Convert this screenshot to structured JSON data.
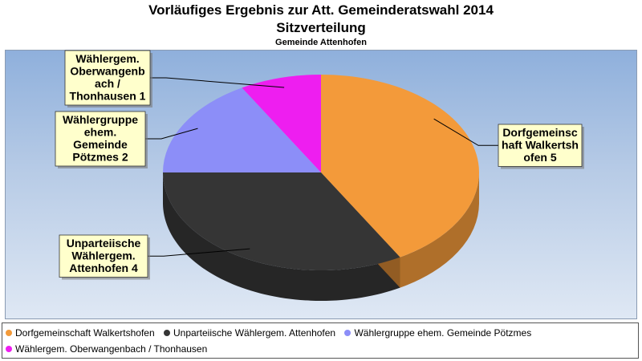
{
  "chart_data": {
    "type": "pie",
    "title": "Vorläufiges Ergebnis zur Att. Gemeinderatswahl 2014",
    "subtitle": "Sitzverteilung",
    "subtitle2": "Gemeinde Attenhofen",
    "slices": [
      {
        "name": "Dorfgemeinschaft Walkertshofen",
        "value": 5,
        "color": "#f39a3a",
        "label_lines": [
          "Dorfgemeinsc",
          "haft Walkertsh",
          "ofen 5"
        ]
      },
      {
        "name": "Unparteiische Wählergem. Attenhofen",
        "value": 4,
        "color": "#353535",
        "label_lines": [
          "Unparteiische",
          "Wählergem.",
          "Attenhofen 4"
        ]
      },
      {
        "name": "Wählergruppe ehem. Gemeinde Pötzmes",
        "value": 2,
        "color": "#8c8ef8",
        "label_lines": [
          "Wählergruppe",
          "ehem.",
          "Gemeinde",
          "Pötzmes 2"
        ]
      },
      {
        "name": "Wählergem. Oberwangenbach / Thonhausen",
        "value": 1,
        "color": "#ee1ef0",
        "label_lines": [
          "Wählergem.",
          "Oberwangenb",
          "ach /",
          "Thonhausen 1"
        ]
      }
    ],
    "legend": "bottom"
  }
}
